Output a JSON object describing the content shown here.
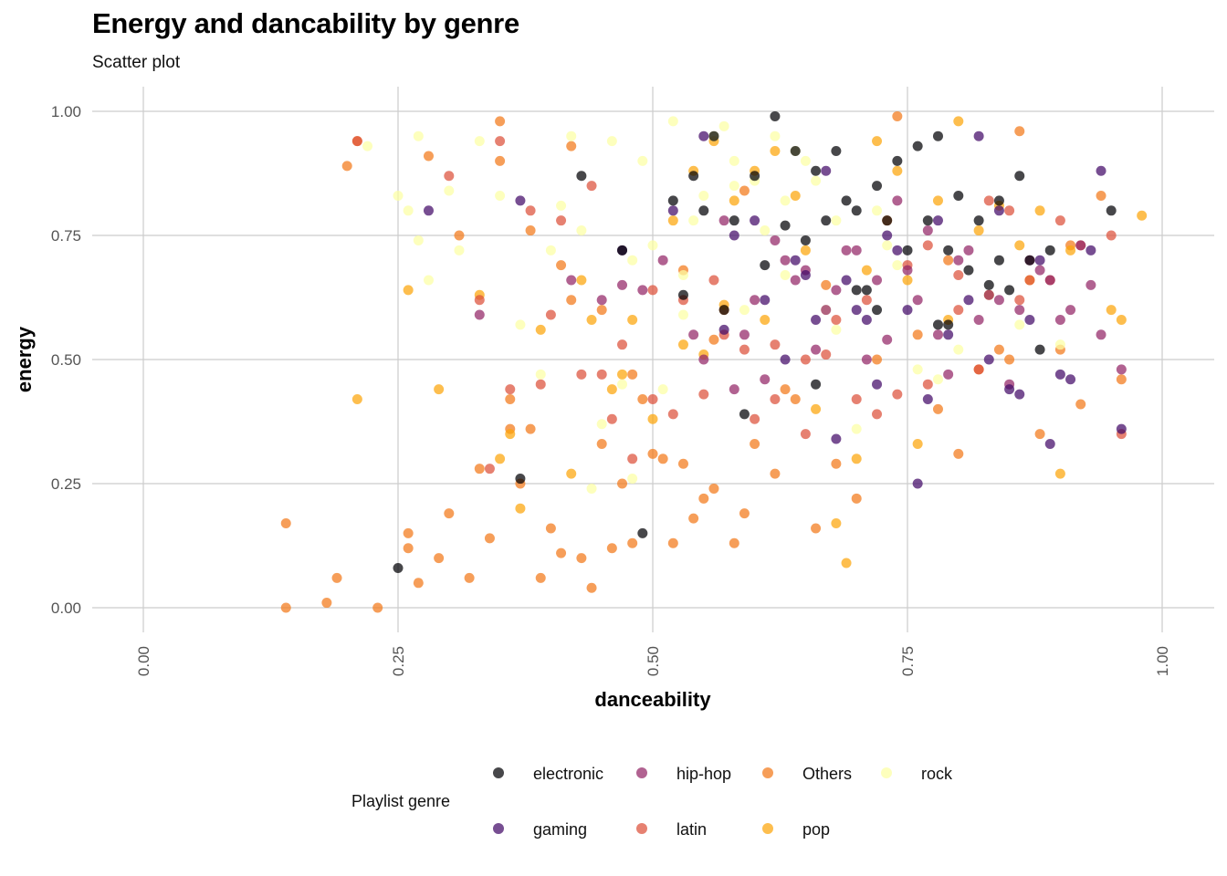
{
  "title": "Energy and dancability by genre",
  "subtitle": "Scatter plot",
  "chart_data": {
    "type": "scatter",
    "title": "Energy and dancability by genre",
    "subtitle": "Scatter plot",
    "xlabel": "danceability",
    "ylabel": "energy",
    "xlim": [
      0,
      1
    ],
    "ylim": [
      0,
      1
    ],
    "x_ticks": [
      "0.00",
      "0.25",
      "0.50",
      "0.75",
      "1.00"
    ],
    "y_ticks": [
      "0.00",
      "0.25",
      "0.50",
      "0.75",
      "1.00"
    ],
    "grid": true,
    "legend": {
      "title": "Playlist genre",
      "placement": "bottom",
      "entries": [
        "electronic",
        "gaming",
        "hip-hop",
        "latin",
        "Others",
        "pop",
        "rock"
      ]
    },
    "series": [
      {
        "name": "electronic",
        "color": "#000004",
        "x": [
          0.25,
          0.37,
          0.49,
          0.43,
          0.52,
          0.56,
          0.6,
          0.62,
          0.64,
          0.66,
          0.68,
          0.7,
          0.72,
          0.74,
          0.76,
          0.78,
          0.8,
          0.82,
          0.84,
          0.86,
          0.88,
          0.55,
          0.58,
          0.65,
          0.7,
          0.75,
          0.79,
          0.83,
          0.87,
          0.95,
          0.53,
          0.61,
          0.67,
          0.73,
          0.77,
          0.81,
          0.85,
          0.89,
          0.57,
          0.63,
          0.69,
          0.71,
          0.79,
          0.59,
          0.66,
          0.72,
          0.78,
          0.84,
          0.47,
          0.54
        ],
        "y": [
          0.08,
          0.26,
          0.15,
          0.87,
          0.82,
          0.95,
          0.87,
          0.99,
          0.92,
          0.88,
          0.92,
          0.8,
          0.85,
          0.9,
          0.93,
          0.95,
          0.83,
          0.78,
          0.82,
          0.87,
          0.52,
          0.8,
          0.78,
          0.74,
          0.64,
          0.72,
          0.72,
          0.65,
          0.7,
          0.8,
          0.63,
          0.69,
          0.78,
          0.78,
          0.78,
          0.68,
          0.64,
          0.72,
          0.6,
          0.77,
          0.82,
          0.64,
          0.57,
          0.39,
          0.45,
          0.6,
          0.57,
          0.7,
          0.72,
          0.87
        ]
      },
      {
        "name": "gaming",
        "color": "#420a68",
        "x": [
          0.28,
          0.37,
          0.47,
          0.52,
          0.55,
          0.58,
          0.61,
          0.64,
          0.67,
          0.7,
          0.73,
          0.76,
          0.79,
          0.82,
          0.85,
          0.88,
          0.91,
          0.94,
          0.6,
          0.66,
          0.72,
          0.78,
          0.84,
          0.9,
          0.63,
          0.69,
          0.75,
          0.81,
          0.87,
          0.93,
          0.57,
          0.68,
          0.74,
          0.86,
          0.96,
          0.77,
          0.89,
          0.71,
          0.83,
          0.65
        ],
        "y": [
          0.8,
          0.82,
          0.72,
          0.8,
          0.95,
          0.75,
          0.62,
          0.7,
          0.88,
          0.6,
          0.75,
          0.25,
          0.55,
          0.95,
          0.44,
          0.7,
          0.46,
          0.88,
          0.78,
          0.58,
          0.45,
          0.78,
          0.8,
          0.47,
          0.5,
          0.66,
          0.6,
          0.62,
          0.58,
          0.72,
          0.56,
          0.34,
          0.72,
          0.43,
          0.36,
          0.42,
          0.33,
          0.58,
          0.5,
          0.67
        ]
      },
      {
        "name": "hip-hop",
        "color": "#932667",
        "x": [
          0.33,
          0.42,
          0.47,
          0.51,
          0.54,
          0.57,
          0.6,
          0.63,
          0.66,
          0.69,
          0.72,
          0.75,
          0.78,
          0.81,
          0.84,
          0.87,
          0.9,
          0.93,
          0.96,
          0.55,
          0.61,
          0.67,
          0.73,
          0.79,
          0.85,
          0.91,
          0.58,
          0.64,
          0.7,
          0.76,
          0.82,
          0.88,
          0.94,
          0.62,
          0.68,
          0.74,
          0.8,
          0.86,
          0.92,
          0.59,
          0.65,
          0.71,
          0.77,
          0.83,
          0.89,
          0.45,
          0.49
        ],
        "y": [
          0.59,
          0.66,
          0.65,
          0.7,
          0.55,
          0.78,
          0.62,
          0.7,
          0.52,
          0.72,
          0.66,
          0.68,
          0.55,
          0.72,
          0.62,
          0.7,
          0.58,
          0.65,
          0.48,
          0.5,
          0.46,
          0.6,
          0.54,
          0.47,
          0.45,
          0.6,
          0.44,
          0.66,
          0.72,
          0.62,
          0.58,
          0.68,
          0.55,
          0.74,
          0.64,
          0.82,
          0.7,
          0.6,
          0.73,
          0.55,
          0.68,
          0.5,
          0.76,
          0.63,
          0.66,
          0.62,
          0.64
        ]
      },
      {
        "name": "latin",
        "color": "#dd513a",
        "x": [
          0.21,
          0.3,
          0.33,
          0.35,
          0.38,
          0.41,
          0.44,
          0.47,
          0.5,
          0.53,
          0.56,
          0.59,
          0.62,
          0.65,
          0.68,
          0.71,
          0.74,
          0.77,
          0.8,
          0.83,
          0.86,
          0.89,
          0.92,
          0.95,
          0.36,
          0.4,
          0.45,
          0.5,
          0.55,
          0.6,
          0.65,
          0.7,
          0.75,
          0.8,
          0.85,
          0.9,
          0.39,
          0.43,
          0.48,
          0.52,
          0.57,
          0.62,
          0.67,
          0.72,
          0.77,
          0.82,
          0.87,
          0.96,
          0.34,
          0.46
        ],
        "y": [
          0.94,
          0.87,
          0.62,
          0.94,
          0.8,
          0.78,
          0.85,
          0.53,
          0.64,
          0.62,
          0.66,
          0.52,
          0.42,
          0.5,
          0.58,
          0.62,
          0.43,
          0.73,
          0.6,
          0.82,
          0.62,
          0.66,
          0.73,
          0.75,
          0.44,
          0.59,
          0.47,
          0.42,
          0.43,
          0.38,
          0.35,
          0.42,
          0.69,
          0.67,
          0.8,
          0.78,
          0.45,
          0.47,
          0.3,
          0.39,
          0.55,
          0.53,
          0.51,
          0.39,
          0.45,
          0.48,
          0.66,
          0.35,
          0.28,
          0.38
        ]
      },
      {
        "name": "Others",
        "color": "#f37819",
        "x": [
          0.14,
          0.14,
          0.18,
          0.19,
          0.2,
          0.21,
          0.23,
          0.26,
          0.26,
          0.27,
          0.29,
          0.3,
          0.32,
          0.33,
          0.34,
          0.35,
          0.36,
          0.37,
          0.38,
          0.39,
          0.4,
          0.41,
          0.42,
          0.43,
          0.44,
          0.45,
          0.46,
          0.47,
          0.48,
          0.49,
          0.5,
          0.51,
          0.52,
          0.53,
          0.54,
          0.55,
          0.56,
          0.57,
          0.58,
          0.59,
          0.6,
          0.62,
          0.64,
          0.66,
          0.68,
          0.7,
          0.72,
          0.74,
          0.76,
          0.78,
          0.8,
          0.82,
          0.84,
          0.86,
          0.88,
          0.9,
          0.92,
          0.94,
          0.96,
          0.28,
          0.31,
          0.35,
          0.38,
          0.42,
          0.45,
          0.48,
          0.53,
          0.56,
          0.59,
          0.63,
          0.67,
          0.73,
          0.79,
          0.85,
          0.91,
          0.36,
          0.41
        ],
        "y": [
          0.17,
          0.0,
          0.01,
          0.06,
          0.89,
          0.94,
          0.0,
          0.15,
          0.12,
          0.05,
          0.1,
          0.19,
          0.06,
          0.28,
          0.14,
          0.9,
          0.42,
          0.25,
          0.36,
          0.06,
          0.16,
          0.11,
          0.93,
          0.1,
          0.04,
          0.33,
          0.12,
          0.25,
          0.13,
          0.42,
          0.31,
          0.3,
          0.13,
          0.29,
          0.18,
          0.22,
          0.54,
          0.6,
          0.13,
          0.19,
          0.33,
          0.27,
          0.42,
          0.16,
          0.29,
          0.22,
          0.5,
          0.99,
          0.55,
          0.4,
          0.31,
          0.48,
          0.52,
          0.96,
          0.35,
          0.52,
          0.41,
          0.83,
          0.46,
          0.91,
          0.75,
          0.98,
          0.76,
          0.62,
          0.6,
          0.47,
          0.68,
          0.24,
          0.84,
          0.44,
          0.65,
          0.78,
          0.7,
          0.5,
          0.73,
          0.36,
          0.69
        ]
      },
      {
        "name": "pop",
        "color": "#fca50a",
        "x": [
          0.21,
          0.26,
          0.29,
          0.35,
          0.37,
          0.39,
          0.42,
          0.44,
          0.47,
          0.5,
          0.52,
          0.54,
          0.56,
          0.58,
          0.6,
          0.62,
          0.64,
          0.66,
          0.68,
          0.69,
          0.7,
          0.72,
          0.74,
          0.76,
          0.78,
          0.8,
          0.82,
          0.84,
          0.86,
          0.88,
          0.9,
          0.95,
          0.98,
          0.33,
          0.43,
          0.48,
          0.53,
          0.57,
          0.61,
          0.65,
          0.71,
          0.75,
          0.79,
          0.83,
          0.87,
          0.91,
          0.96,
          0.36,
          0.46,
          0.55
        ],
        "y": [
          0.42,
          0.64,
          0.44,
          0.3,
          0.2,
          0.56,
          0.27,
          0.58,
          0.47,
          0.38,
          0.78,
          0.88,
          0.94,
          0.82,
          0.88,
          0.92,
          0.83,
          0.4,
          0.17,
          0.09,
          0.3,
          0.94,
          0.88,
          0.33,
          0.82,
          0.98,
          0.76,
          0.81,
          0.73,
          0.8,
          0.27,
          0.6,
          0.79,
          0.63,
          0.66,
          0.58,
          0.53,
          0.61,
          0.58,
          0.72,
          0.68,
          0.66,
          0.58,
          0.63,
          0.66,
          0.72,
          0.58,
          0.35,
          0.44,
          0.51
        ]
      },
      {
        "name": "rock",
        "color": "#fcffa4",
        "x": [
          0.22,
          0.25,
          0.26,
          0.27,
          0.27,
          0.28,
          0.3,
          0.31,
          0.33,
          0.35,
          0.37,
          0.39,
          0.4,
          0.41,
          0.42,
          0.44,
          0.45,
          0.46,
          0.47,
          0.48,
          0.49,
          0.5,
          0.51,
          0.52,
          0.53,
          0.54,
          0.55,
          0.56,
          0.57,
          0.58,
          0.59,
          0.6,
          0.61,
          0.62,
          0.63,
          0.64,
          0.65,
          0.66,
          0.67,
          0.68,
          0.7,
          0.72,
          0.74,
          0.76,
          0.78,
          0.8,
          0.86,
          0.9,
          0.43,
          0.48,
          0.53,
          0.58,
          0.63,
          0.68,
          0.73
        ],
        "y": [
          0.93,
          0.83,
          0.8,
          0.95,
          0.74,
          0.66,
          0.84,
          0.72,
          0.94,
          0.83,
          0.57,
          0.47,
          0.72,
          0.81,
          0.95,
          0.24,
          0.37,
          0.94,
          0.45,
          0.26,
          0.9,
          0.73,
          0.44,
          0.98,
          0.67,
          0.78,
          0.83,
          0.95,
          0.97,
          0.9,
          0.6,
          0.86,
          0.76,
          0.95,
          0.82,
          0.92,
          0.9,
          0.86,
          0.6,
          0.56,
          0.36,
          0.8,
          0.69,
          0.48,
          0.46,
          0.52,
          0.57,
          0.53,
          0.76,
          0.7,
          0.59,
          0.85,
          0.67,
          0.78,
          0.73
        ]
      }
    ]
  }
}
